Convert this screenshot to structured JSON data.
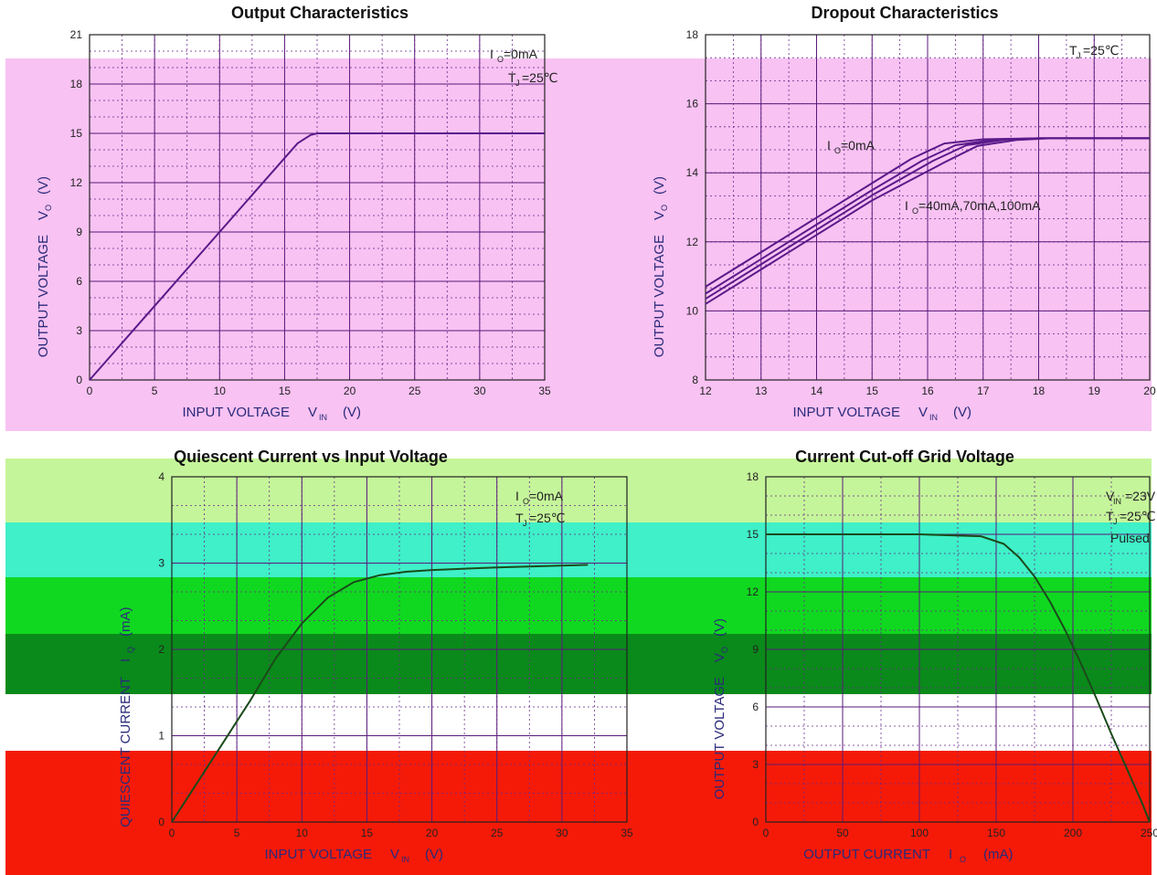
{
  "bands": [
    {
      "color": "#f8c2f2"
    },
    {
      "color": "#c5f59a"
    },
    {
      "color": "#3ff0c8"
    },
    {
      "color": "#10d820"
    },
    {
      "color": "#0a8a1a"
    },
    {
      "color": "#f51a08"
    }
  ],
  "chart_data": [
    {
      "id": "output",
      "type": "line",
      "title": "Output Characteristics",
      "xlabel": "INPUT VOLTAGE",
      "xlabel_sym": "V",
      "xlabel_sub": "IN",
      "xlabel_unit": "(V)",
      "ylabel": "OUTPUT VOLTAGE",
      "ylabel_sym": "V",
      "ylabel_sub": "O",
      "ylabel_unit": "(V)",
      "xlim": [
        0,
        35
      ],
      "ylim": [
        0,
        21
      ],
      "xticks": [
        0,
        5,
        10,
        15,
        20,
        25,
        30,
        35
      ],
      "yticks": [
        0,
        3,
        6,
        9,
        12,
        15,
        18,
        21
      ],
      "annotations": [
        {
          "text": "I",
          "sub": "O",
          "tail": "=0mA"
        },
        {
          "text": "T",
          "sub": "J",
          "tail": "=25℃"
        }
      ],
      "series": [
        {
          "color": "#5a1a8a",
          "x": [
            0,
            2,
            4,
            6,
            8,
            10,
            12,
            14,
            16,
            17,
            17.5,
            18,
            20,
            25,
            30,
            35
          ],
          "y": [
            0,
            1.8,
            3.6,
            5.4,
            7.2,
            9.0,
            10.8,
            12.6,
            14.4,
            14.9,
            15.0,
            15.0,
            15.0,
            15.0,
            15.0,
            15.0
          ]
        }
      ]
    },
    {
      "id": "dropout",
      "type": "line",
      "title": "Dropout Characteristics",
      "xlabel": "INPUT VOLTAGE",
      "xlabel_sym": "V",
      "xlabel_sub": "IN",
      "xlabel_unit": "(V)",
      "ylabel": "OUTPUT VOLTAGE",
      "ylabel_sym": "V",
      "ylabel_sub": "O",
      "ylabel_unit": "(V)",
      "xlim": [
        12,
        20
      ],
      "ylim": [
        8,
        18
      ],
      "xticks": [
        12,
        13,
        14,
        15,
        16,
        17,
        18,
        19,
        20
      ],
      "yticks": [
        8,
        10,
        12,
        14,
        16,
        18
      ],
      "annotations": [
        {
          "text": "T",
          "sub": "J",
          "tail": "=25℃"
        },
        {
          "text": "I",
          "sub": "O",
          "tail": "=0mA"
        },
        {
          "text": "I",
          "sub": "O",
          "tail": "=40mA,70mA,100mA"
        }
      ],
      "series": [
        {
          "color": "#5a1a8a",
          "x": [
            12,
            13,
            14,
            15,
            15.7,
            16.3,
            17,
            18,
            20
          ],
          "y": [
            10.7,
            11.7,
            12.7,
            13.7,
            14.4,
            14.85,
            14.97,
            15.0,
            15.0
          ]
        },
        {
          "color": "#5a1a8a",
          "x": [
            12,
            13,
            14,
            15,
            15.9,
            16.5,
            17.2,
            18,
            20
          ],
          "y": [
            10.5,
            11.5,
            12.5,
            13.5,
            14.35,
            14.8,
            14.96,
            15.0,
            15.0
          ]
        },
        {
          "color": "#5a1a8a",
          "x": [
            12,
            13,
            14,
            15,
            16.1,
            16.7,
            17.4,
            18,
            20
          ],
          "y": [
            10.35,
            11.35,
            12.35,
            13.35,
            14.35,
            14.8,
            14.96,
            15.0,
            15.0
          ]
        },
        {
          "color": "#5a1a8a",
          "x": [
            12,
            13,
            14,
            15,
            16.3,
            16.9,
            17.6,
            18.2,
            20
          ],
          "y": [
            10.2,
            11.2,
            12.2,
            13.2,
            14.3,
            14.78,
            14.95,
            15.0,
            15.0
          ]
        }
      ]
    },
    {
      "id": "quiescent",
      "type": "line",
      "title": "Quiescent Current vs Input Voltage",
      "xlabel": "INPUT VOLTAGE",
      "xlabel_sym": "V",
      "xlabel_sub": "IN",
      "xlabel_unit": "(V)",
      "ylabel": "QUIESCENT CURRENT",
      "ylabel_sym": "I",
      "ylabel_sub": "Q",
      "ylabel_unit": "(mA)",
      "xlim": [
        0,
        35
      ],
      "ylim": [
        0,
        4
      ],
      "xticks": [
        0,
        5,
        10,
        15,
        20,
        25,
        30,
        35
      ],
      "yticks": [
        0,
        1,
        2,
        3,
        4
      ],
      "annotations": [
        {
          "text": "I",
          "sub": "O",
          "tail": "=0mA"
        },
        {
          "text": "T",
          "sub": "J",
          "tail": "=25℃"
        }
      ],
      "series": [
        {
          "color": "#1a4a1a",
          "x": [
            0,
            3,
            6,
            8,
            10,
            12,
            14,
            16,
            18,
            20,
            25,
            32
          ],
          "y": [
            0,
            0.7,
            1.4,
            1.9,
            2.3,
            2.6,
            2.78,
            2.86,
            2.9,
            2.92,
            2.95,
            2.98
          ]
        }
      ]
    },
    {
      "id": "cutoff",
      "type": "line",
      "title": "Current Cut-off Grid Voltage",
      "xlabel": "OUTPUT CURRENT",
      "xlabel_sym": "I",
      "xlabel_sub": "O",
      "xlabel_unit": "(mA)",
      "ylabel": "OUTPUT VOLTAGE",
      "ylabel_sym": "V",
      "ylabel_sub": "O",
      "ylabel_unit": "(V)",
      "xlim": [
        0,
        250
      ],
      "ylim": [
        0,
        18
      ],
      "xticks": [
        0,
        50,
        100,
        150,
        200,
        250
      ],
      "yticks": [
        0,
        3,
        6,
        9,
        12,
        15,
        18
      ],
      "annotations": [
        {
          "text": "V",
          "sub": "IN",
          "tail": "=23V"
        },
        {
          "text": "T",
          "sub": "J",
          "tail": "=25℃"
        },
        {
          "text": "Pulsed",
          "sub": "",
          "tail": ""
        }
      ],
      "series": [
        {
          "color": "#1a4a1a",
          "x": [
            0,
            50,
            100,
            140,
            155,
            165,
            175,
            185,
            195,
            205,
            215,
            225,
            235,
            245,
            250
          ],
          "y": [
            15.0,
            15.0,
            15.0,
            14.9,
            14.5,
            13.8,
            12.8,
            11.5,
            10.0,
            8.3,
            6.5,
            4.6,
            2.8,
            1.0,
            0.0
          ]
        }
      ]
    }
  ]
}
